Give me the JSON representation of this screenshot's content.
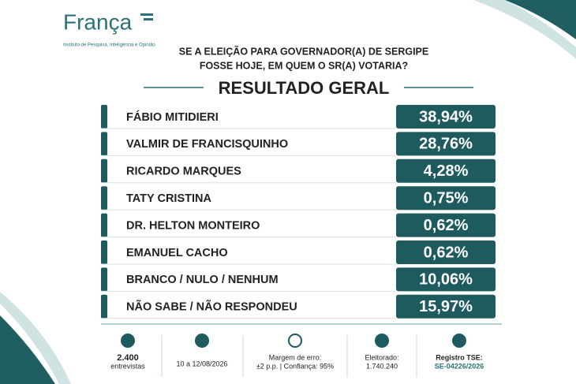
{
  "header": {
    "logo": "França",
    "logo_subtitle": "Instituto de Pesquisa, Inteligência e Opinião",
    "question": [
      "SE A ELEIÇÃO PARA GOVERNADOR(A) DE SERGIPE",
      "FOSSE HOJE, EM QUEM O SR(A) VOTARIA?"
    ],
    "title": "RESULTADO GERAL"
  },
  "results": [
    {
      "name": "FÁBIO MITIDIERI",
      "value": "38,94%"
    },
    {
      "name": "VALMIR DE FRANCISQUINHO",
      "value": "28,76%"
    },
    {
      "name": "RICARDO MARQUES",
      "value": "4,28%"
    },
    {
      "name": "TATY CRISTINA",
      "value": "0,75%"
    },
    {
      "name": "DR. HELTON MONTEIRO",
      "value": "0,62%"
    },
    {
      "name": "EMANUEL CACHO",
      "value": "0,62%"
    },
    {
      "name": "BRANCO / NULO / NENHUM",
      "value": "10,06%"
    },
    {
      "name": "NÃO SABE / NÃO RESPONDEU",
      "value": "15,97%"
    }
  ],
  "footer": [
    {
      "lines": [
        "2.400",
        "entrevistas"
      ]
    },
    {
      "lines": [
        "10 a 12/08/2026"
      ]
    },
    {
      "lines": [
        "Margem de erro:",
        "±2 p.p. | Confiança: 95%"
      ]
    },
    {
      "lines": [
        "Eleitorado:",
        "1.740.240"
      ]
    },
    {
      "lines": [
        "Registro TSE:",
        "SE-04226/2026"
      ]
    }
  ]
}
